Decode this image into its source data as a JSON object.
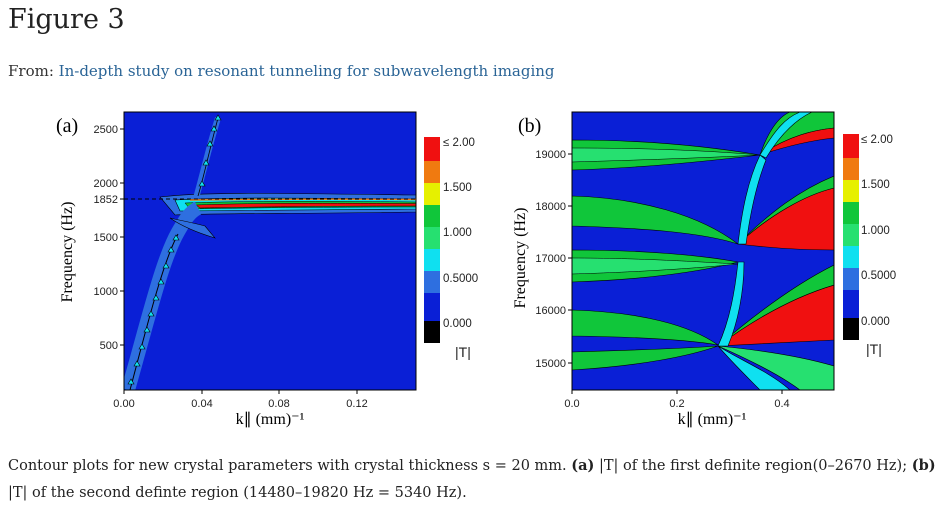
{
  "figure_title": "Figure 3",
  "from_prefix": "From:",
  "from_link": "In-depth study on resonant tunneling for subwavelength imaging",
  "panels": [
    {
      "label": "(a)",
      "y_axis_label": "Frequency (Hz)",
      "x_axis_label": "k∥ (mm)⁻¹",
      "y_ticks": [
        "500",
        "1000",
        "1500",
        "2000",
        "2500"
      ],
      "y_extra_tick": "1852",
      "x_ticks": [
        "0.00",
        "0.04",
        "0.08",
        "0.12"
      ],
      "colorbar": [
        "≤ 2.00",
        "1.500",
        "1.000",
        "0.5000",
        "0.000"
      ],
      "colorbar_title": "|T|"
    },
    {
      "label": "(b)",
      "y_axis_label": "Frequency (Hz)",
      "x_axis_label": "k∥ (mm)⁻¹",
      "y_ticks": [
        "15000",
        "16000",
        "17000",
        "18000",
        "19000"
      ],
      "x_ticks": [
        "0.0",
        "0.2",
        "0.4"
      ],
      "colorbar": [
        "≤ 2.00",
        "1.500",
        "1.000",
        "0.5000",
        "0.000"
      ],
      "colorbar_title": "|T|"
    }
  ],
  "colors": {
    "deep_blue": "#0a1fd6",
    "mid_blue": "#2e6fe0",
    "cyan": "#0fe0f0",
    "green": "#10c63a",
    "light_green": "#26e070",
    "yellow": "#e6f000",
    "orange": "#f07a10",
    "red": "#f01010",
    "black": "#000000",
    "link": "#2a6496"
  },
  "caption": {
    "text1": "Contour plots for new crystal parameters with crystal thickness s = 20 mm. ",
    "a_label": "(a)",
    "text2": " |T| of the first definite region(0–2670 Hz); ",
    "b_label": "(b)",
    "text3": " |T| of the second definte region (14480–19820 Hz = 5340 Hz)."
  }
}
